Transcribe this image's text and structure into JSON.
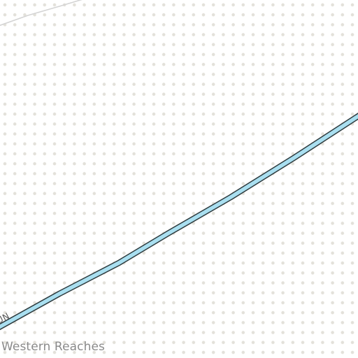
{
  "map": {
    "region_label": "Western Reaches",
    "road_label": "UN",
    "colors": {
      "background": "#ffffff",
      "dot_pattern": "#e3e1da",
      "road_fill": "#a9dff0",
      "road_casing": "#2e3b3e",
      "minor_road": "#d4d4d4",
      "region_text": "#8a8a8a"
    }
  }
}
